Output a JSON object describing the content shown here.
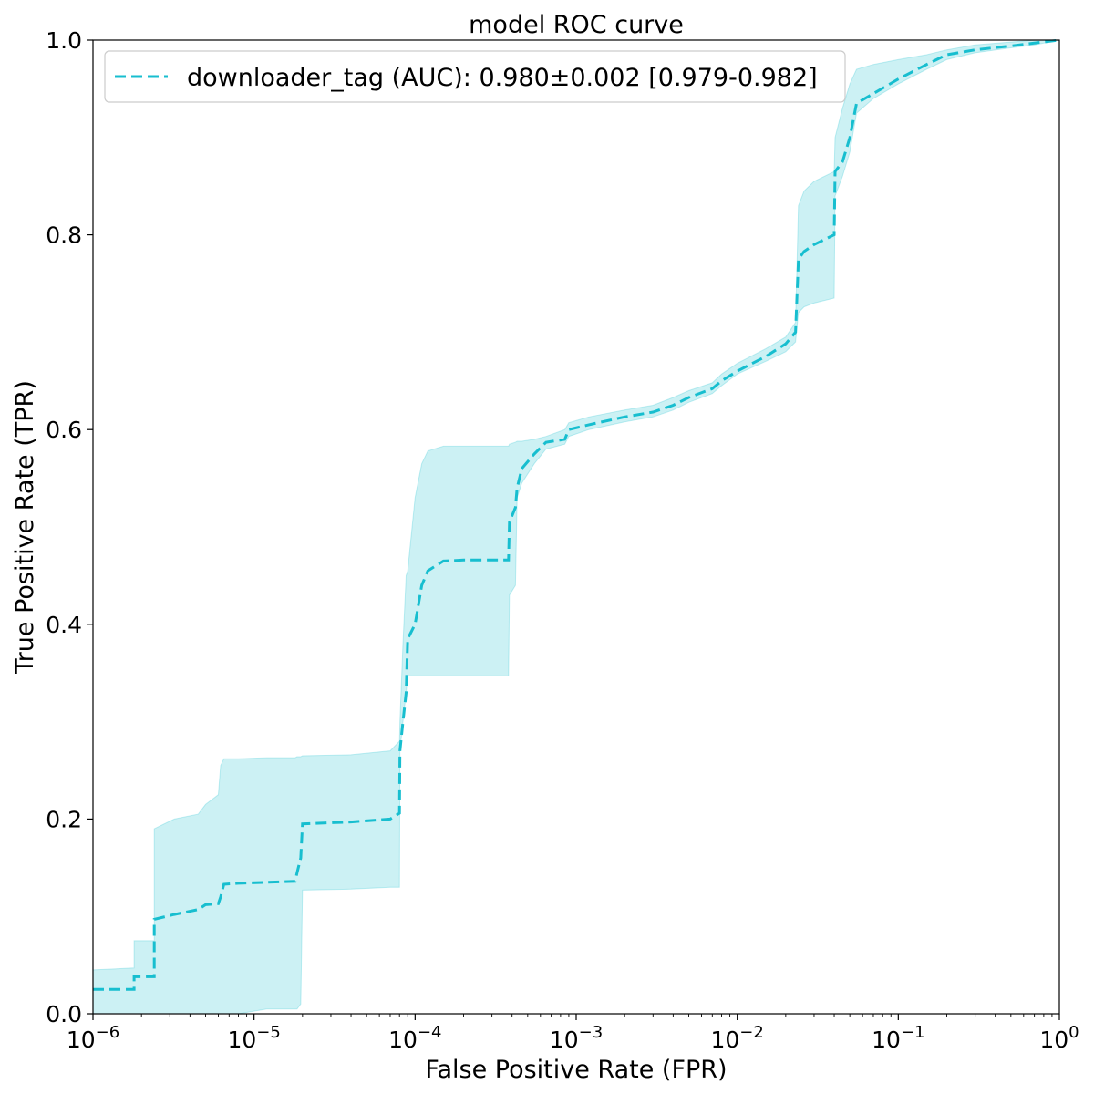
{
  "chart_data": {
    "type": "line",
    "title": "model ROC curve",
    "xlabel": "False Positive Rate (FPR)",
    "ylabel": "True Positive Rate (TPR)",
    "xscale": "log",
    "xlim": [
      1e-06,
      1
    ],
    "ylim": [
      0.0,
      1.0
    ],
    "grid": false,
    "legend_position": "top-left",
    "x_tick_values": [
      1e-06,
      1e-05,
      0.0001,
      0.001,
      0.01,
      0.1,
      1
    ],
    "x_ticks": [
      {
        "base": "10",
        "exp": "−6"
      },
      {
        "base": "10",
        "exp": "−5"
      },
      {
        "base": "10",
        "exp": "−4"
      },
      {
        "base": "10",
        "exp": "−3"
      },
      {
        "base": "10",
        "exp": "−2"
      },
      {
        "base": "10",
        "exp": "−1"
      },
      {
        "base": "10",
        "exp": "0"
      }
    ],
    "y_tick_values": [
      0.0,
      0.2,
      0.4,
      0.6,
      0.8,
      1.0
    ],
    "y_ticks": [
      "0.0",
      "0.2",
      "0.4",
      "0.6",
      "0.8",
      "1.0"
    ],
    "colors": {
      "line": "#17becf",
      "band": "#17becf"
    },
    "series": [
      {
        "name": "downloader_tag (AUC): 0.980±0.002 [0.979-0.982]",
        "style": "dashed",
        "x": [
          1e-06,
          1.8e-06,
          1.8e-06,
          2.4e-06,
          2.4e-06,
          3.2e-06,
          4.5e-06,
          5e-06,
          6e-06,
          6.2e-06,
          6.5e-06,
          8e-06,
          1.2e-05,
          1.8e-05,
          1.85e-05,
          1.95e-05,
          2e-05,
          4e-05,
          7e-05,
          8e-05,
          8.05e-05,
          8.4e-05,
          8.8e-05,
          9e-05,
          0.0001,
          0.00011,
          0.00012,
          0.00015,
          0.0002,
          0.00038,
          0.000385,
          0.00042,
          0.00043,
          0.00046,
          0.00055,
          0.00065,
          0.00085,
          0.0009,
          0.0012,
          0.002,
          0.003,
          0.004,
          0.005,
          0.007,
          0.008,
          0.01,
          0.015,
          0.02,
          0.023,
          0.024,
          0.026,
          0.03,
          0.04,
          0.0405,
          0.045,
          0.05,
          0.055,
          0.07,
          0.1,
          0.15,
          0.2,
          0.3,
          0.5,
          0.7,
          1.0
        ],
        "y": [
          0.025,
          0.025,
          0.038,
          0.038,
          0.097,
          0.102,
          0.107,
          0.112,
          0.113,
          0.12,
          0.133,
          0.134,
          0.135,
          0.136,
          0.145,
          0.16,
          0.195,
          0.197,
          0.2,
          0.206,
          0.27,
          0.3,
          0.33,
          0.385,
          0.4,
          0.44,
          0.455,
          0.465,
          0.466,
          0.466,
          0.505,
          0.52,
          0.54,
          0.56,
          0.575,
          0.587,
          0.59,
          0.6,
          0.605,
          0.613,
          0.618,
          0.625,
          0.633,
          0.642,
          0.65,
          0.66,
          0.675,
          0.688,
          0.7,
          0.775,
          0.783,
          0.79,
          0.8,
          0.865,
          0.875,
          0.9,
          0.935,
          0.945,
          0.96,
          0.975,
          0.985,
          0.99,
          0.994,
          0.997,
          1.0
        ],
        "band_lower": [
          0.0,
          0.0,
          0.0,
          0.0,
          0.0,
          0.0,
          0.0,
          0.0,
          0.0,
          0.0,
          0.0,
          0.0,
          0.005,
          0.005,
          0.005,
          0.01,
          0.127,
          0.128,
          0.13,
          0.13,
          0.27,
          0.3,
          0.33,
          0.347,
          0.347,
          0.347,
          0.347,
          0.347,
          0.347,
          0.347,
          0.43,
          0.44,
          0.53,
          0.545,
          0.565,
          0.58,
          0.585,
          0.593,
          0.6,
          0.608,
          0.613,
          0.62,
          0.628,
          0.637,
          0.645,
          0.657,
          0.67,
          0.68,
          0.69,
          0.72,
          0.726,
          0.73,
          0.735,
          0.84,
          0.86,
          0.885,
          0.925,
          0.94,
          0.955,
          0.97,
          0.98,
          0.987,
          0.992,
          0.995,
          1.0
        ],
        "band_upper": [
          0.045,
          0.047,
          0.075,
          0.075,
          0.19,
          0.2,
          0.205,
          0.215,
          0.225,
          0.255,
          0.262,
          0.262,
          0.263,
          0.263,
          0.264,
          0.264,
          0.265,
          0.266,
          0.27,
          0.28,
          0.3,
          0.38,
          0.45,
          0.455,
          0.53,
          0.565,
          0.578,
          0.583,
          0.583,
          0.583,
          0.585,
          0.587,
          0.588,
          0.588,
          0.59,
          0.593,
          0.6,
          0.607,
          0.613,
          0.62,
          0.625,
          0.633,
          0.64,
          0.648,
          0.657,
          0.668,
          0.683,
          0.695,
          0.71,
          0.83,
          0.845,
          0.855,
          0.865,
          0.9,
          0.93,
          0.955,
          0.97,
          0.975,
          0.98,
          0.985,
          0.99,
          0.995,
          0.998,
          1.0,
          1.0
        ]
      }
    ]
  }
}
